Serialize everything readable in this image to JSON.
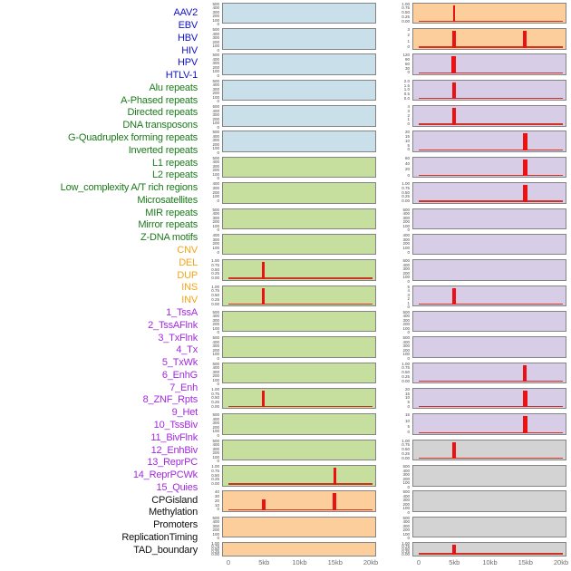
{
  "colors": {
    "fill": {
      "virus": "#c9e0ea",
      "repeat": "#c6df9f",
      "sv": "#fbce9c",
      "chromatin": "#d7cde6",
      "other": "#d3d3d3"
    },
    "label": {
      "virus": "#1111cc",
      "repeat": "#1b7a1b",
      "sv": "#f4a418",
      "chromatin": "#a228e0",
      "other": "#111111"
    },
    "panel_border": "#848484",
    "spike": "#ee1111",
    "baseline": "#cc3322",
    "axis_text": "#6e6e6e"
  },
  "chart_data": {
    "type": "area",
    "description": "Two columns of genomic feature tracks; each panel is a filled density track over a 0-20kb window with red signal spikes at 5kb or 15kb",
    "x_axis": {
      "ticks": [
        "0",
        "5kb",
        "10kb",
        "15kb",
        "20kb"
      ],
      "values_kb": [
        0,
        5,
        10,
        15,
        20
      ],
      "range_kb": [
        0,
        20
      ]
    },
    "columns": [
      {
        "id": "left",
        "panels": [
          {
            "label": "AAV2",
            "category": "virus",
            "yticks": [
              "500",
              "400",
              "300",
              "200",
              "100",
              "0"
            ],
            "spikes": []
          },
          {
            "label": "EBV",
            "category": "virus",
            "yticks": [
              "500",
              "400",
              "300",
              "200",
              "100",
              "0"
            ],
            "spikes": []
          },
          {
            "label": "HBV",
            "category": "virus",
            "yticks": [
              "500",
              "400",
              "300",
              "200",
              "100",
              "0"
            ],
            "spikes": []
          },
          {
            "label": "HIV",
            "category": "virus",
            "yticks": [
              "500",
              "400",
              "300",
              "200",
              "100",
              "0"
            ],
            "spikes": []
          },
          {
            "label": "HPV",
            "category": "virus",
            "yticks": [
              "500",
              "400",
              "300",
              "200",
              "100",
              "0"
            ],
            "spikes": []
          },
          {
            "label": "HTLV-1",
            "category": "virus",
            "yticks": [
              "500",
              "400",
              "300",
              "200",
              "100",
              "0"
            ],
            "spikes": []
          },
          {
            "label": "Alu repeats",
            "category": "repeat",
            "yticks": [
              "500",
              "400",
              "300",
              "200",
              "100",
              "0"
            ],
            "spikes": []
          },
          {
            "label": "A-Phased repeats",
            "category": "repeat",
            "yticks": [
              "400",
              "300",
              "200",
              "100",
              "0"
            ],
            "spikes": []
          },
          {
            "label": "Directed repeats",
            "category": "repeat",
            "yticks": [
              "500",
              "400",
              "300",
              "200",
              "100",
              "0"
            ],
            "spikes": []
          },
          {
            "label": "DNA transposons",
            "category": "repeat",
            "yticks": [
              "400",
              "300",
              "200",
              "100",
              "0"
            ],
            "spikes": []
          },
          {
            "label": "G-Quadruplex forming repeats",
            "category": "repeat",
            "yticks": [
              "1.00",
              "0.75",
              "0.50",
              "0.25",
              "0.00"
            ],
            "spikes": [
              {
                "kb": 5,
                "frac": 1,
                "w": 3
              }
            ]
          },
          {
            "label": "Inverted repeats",
            "category": "repeat",
            "yticks": [
              "1.00",
              "0.75",
              "0.50",
              "0.25",
              "0.00"
            ],
            "spikes": [
              {
                "kb": 5,
                "frac": 1,
                "w": 3
              }
            ]
          },
          {
            "label": "L1 repeats",
            "category": "repeat",
            "yticks": [
              "500",
              "400",
              "300",
              "200",
              "100",
              "0"
            ],
            "spikes": []
          },
          {
            "label": "L2 repeats",
            "category": "repeat",
            "yticks": [
              "500",
              "400",
              "300",
              "200",
              "100",
              "0"
            ],
            "spikes": []
          },
          {
            "label": "Low_complexity A/T rich regions",
            "category": "repeat",
            "yticks": [
              "500",
              "400",
              "300",
              "200",
              "100",
              "0"
            ],
            "spikes": []
          },
          {
            "label": "Microsatellites",
            "category": "repeat",
            "yticks": [
              "1.00",
              "0.75",
              "0.50",
              "0.25",
              "0.00"
            ],
            "spikes": [
              {
                "kb": 5,
                "frac": 1,
                "w": 3
              }
            ]
          },
          {
            "label": "MIR repeats",
            "category": "repeat",
            "yticks": [
              "500",
              "400",
              "300",
              "200",
              "100",
              "0"
            ],
            "spikes": []
          },
          {
            "label": "Mirror repeats",
            "category": "repeat",
            "yticks": [
              "500",
              "400",
              "300",
              "200",
              "100",
              "0"
            ],
            "spikes": []
          },
          {
            "label": "Z-DNA motifs",
            "category": "repeat",
            "yticks": [
              "1.00",
              "0.75",
              "0.50",
              "0.25",
              "0.00"
            ],
            "spikes": [
              {
                "kb": 15,
                "frac": 1,
                "w": 3
              }
            ]
          },
          {
            "label": "CNV",
            "category": "sv",
            "yticks": [
              "40",
              "30",
              "20",
              "10",
              "0"
            ],
            "spikes": [
              {
                "kb": 5,
                "frac": 0.62,
                "w": 4
              },
              {
                "kb": 15,
                "frac": 1,
                "w": 4
              }
            ]
          },
          {
            "label": "DEL",
            "category": "sv",
            "yticks": [
              "500",
              "400",
              "300",
              "200",
              "100",
              "0"
            ],
            "spikes": []
          },
          {
            "label": "DUP",
            "category": "sv",
            "yticks": [
              "1.00",
              "0.75",
              "0.50",
              "0.25",
              "0.00"
            ],
            "spikes": [],
            "short": true,
            "dense": true
          }
        ]
      },
      {
        "id": "right",
        "panels": [
          {
            "label": "INS",
            "category": "sv",
            "yticks": [
              "1.00",
              "0.75",
              "0.50",
              "0.25",
              "0.00"
            ],
            "spikes": [
              {
                "kb": 5,
                "frac": 1,
                "w": 2
              }
            ]
          },
          {
            "label": "INV",
            "category": "sv",
            "yticks": [
              "3",
              "2",
              "1",
              "0"
            ],
            "spikes": [
              {
                "kb": 5,
                "frac": 1,
                "w": 4
              },
              {
                "kb": 15,
                "frac": 1,
                "w": 4
              }
            ]
          },
          {
            "label": "1_TssA",
            "category": "chromatin",
            "yticks": [
              "120",
              "90",
              "60",
              "30",
              "0"
            ],
            "spikes": [
              {
                "kb": 5,
                "frac": 1,
                "w": 5
              }
            ]
          },
          {
            "label": "2_TssAFlnk",
            "category": "chromatin",
            "yticks": [
              "2.0",
              "1.5",
              "1.0",
              "0.5",
              "0.0"
            ],
            "spikes": [
              {
                "kb": 5,
                "frac": 1,
                "w": 4
              }
            ]
          },
          {
            "label": "3_TxFlnk",
            "category": "chromatin",
            "yticks": [
              "4",
              "3",
              "2",
              "1",
              "0"
            ],
            "spikes": [
              {
                "kb": 5,
                "frac": 1,
                "w": 4
              }
            ]
          },
          {
            "label": "4_Tx",
            "category": "chromatin",
            "yticks": [
              "20",
              "15",
              "10",
              "5",
              "0"
            ],
            "spikes": [
              {
                "kb": 15,
                "frac": 1,
                "w": 5
              }
            ]
          },
          {
            "label": "5_TxWk",
            "category": "chromatin",
            "yticks": [
              "60",
              "40",
              "20",
              "0"
            ],
            "spikes": [
              {
                "kb": 15,
                "frac": 1,
                "w": 5
              }
            ]
          },
          {
            "label": "6_EnhG",
            "category": "chromatin",
            "yticks": [
              "1.00",
              "0.75",
              "0.50",
              "0.25",
              "0.00"
            ],
            "spikes": [
              {
                "kb": 15,
                "frac": 1,
                "w": 5
              }
            ]
          },
          {
            "label": "7_Enh",
            "category": "chromatin",
            "yticks": [
              "500",
              "400",
              "300",
              "200",
              "100",
              "0"
            ],
            "spikes": []
          },
          {
            "label": "8_ZNF_Rpts",
            "category": "chromatin",
            "yticks": [
              "400",
              "300",
              "200",
              "100",
              "0"
            ],
            "spikes": []
          },
          {
            "label": "9_Het",
            "category": "chromatin",
            "yticks": [
              "500",
              "400",
              "300",
              "200",
              "100",
              "0"
            ],
            "spikes": []
          },
          {
            "label": "10_TssBiv",
            "category": "chromatin",
            "yticks": [
              "5",
              "4",
              "3",
              "2",
              "1",
              "0"
            ],
            "spikes": [
              {
                "kb": 5,
                "frac": 1,
                "w": 4
              }
            ]
          },
          {
            "label": "11_BivFlnk",
            "category": "chromatin",
            "yticks": [
              "500",
              "400",
              "300",
              "200",
              "100",
              "0"
            ],
            "spikes": []
          },
          {
            "label": "12_EnhBiv",
            "category": "chromatin",
            "yticks": [
              "500",
              "400",
              "300",
              "200",
              "100",
              "0"
            ],
            "spikes": []
          },
          {
            "label": "13_ReprPC",
            "category": "chromatin",
            "yticks": [
              "1.00",
              "0.75",
              "0.50",
              "0.25",
              "0.00"
            ],
            "spikes": [
              {
                "kb": 15,
                "frac": 1,
                "w": 4
              }
            ]
          },
          {
            "label": "14_ReprPCWk",
            "category": "chromatin",
            "yticks": [
              "20",
              "15",
              "10",
              "5",
              "0"
            ],
            "spikes": [
              {
                "kb": 15,
                "frac": 1,
                "w": 5
              }
            ]
          },
          {
            "label": "15_Quies",
            "category": "chromatin",
            "yticks": [
              "15",
              "10",
              "5",
              "0"
            ],
            "spikes": [
              {
                "kb": 15,
                "frac": 1,
                "w": 5
              }
            ]
          },
          {
            "label": "CPGisland",
            "category": "other",
            "yticks": [
              "1.00",
              "0.75",
              "0.50",
              "0.25",
              "0.00"
            ],
            "spikes": [
              {
                "kb": 5,
                "frac": 1,
                "w": 4
              }
            ]
          },
          {
            "label": "Methylation",
            "category": "other",
            "yticks": [
              "500",
              "400",
              "300",
              "200",
              "100",
              "0"
            ],
            "spikes": []
          },
          {
            "label": "Promoters",
            "category": "other",
            "yticks": [
              "500",
              "400",
              "300",
              "200",
              "100",
              "0"
            ],
            "spikes": []
          },
          {
            "label": "ReplicationTiming",
            "category": "other",
            "yticks": [
              "500",
              "400",
              "300",
              "200",
              "100",
              "0"
            ],
            "spikes": []
          },
          {
            "label": "TAD_boundary",
            "category": "other",
            "yticks": [
              "1.00",
              "0.75",
              "0.50",
              "0.25",
              "0.00"
            ],
            "spikes": [
              {
                "kb": 5,
                "frac": 1,
                "w": 4
              }
            ],
            "short": true,
            "dense": true
          }
        ]
      }
    ]
  }
}
